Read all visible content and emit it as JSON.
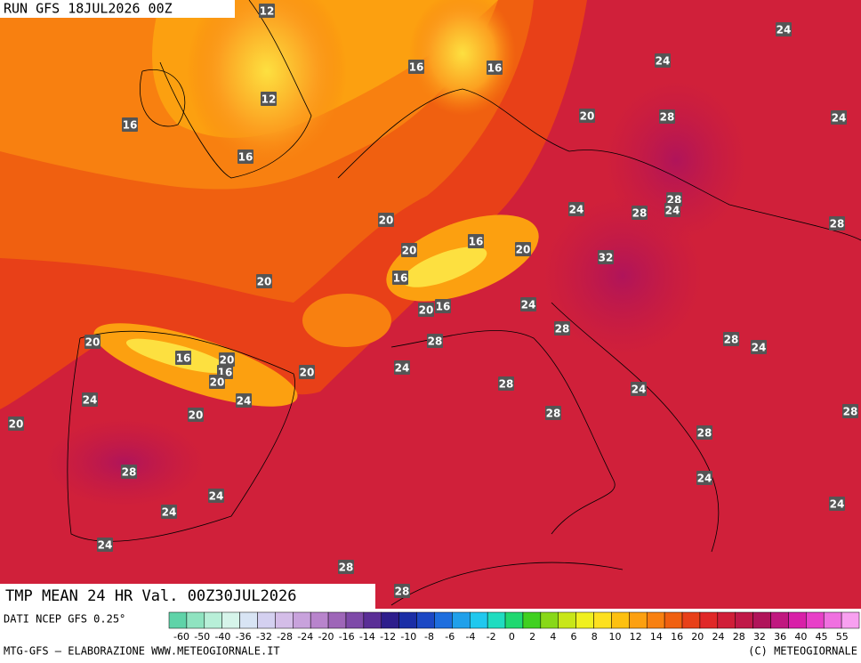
{
  "header": {
    "run": "RUN GFS 18JUL2026 00Z"
  },
  "map": {
    "title": "TMP MEAN 24 HR Val. 00Z30JUL2026",
    "contour_labels": [
      12,
      16,
      16,
      12,
      16,
      16,
      24,
      24,
      20,
      28,
      24,
      28,
      24,
      28,
      24,
      28,
      20,
      20,
      16,
      20,
      32,
      20,
      16,
      20,
      16,
      24,
      28,
      20,
      16,
      20,
      16,
      20,
      20,
      24,
      28,
      28,
      24,
      24,
      24,
      28,
      24,
      20,
      20,
      28,
      28,
      28,
      28,
      24,
      24,
      24,
      24,
      24,
      28,
      28
    ]
  },
  "footer": {
    "source": "DATI NCEP GFS 0.25°",
    "credit": "MTG-GFS — ELABORAZIONE WWW.METEOGIORNALE.IT",
    "copyright": "(C) METEOGIORNALE"
  },
  "colorbar": {
    "labels": [
      "-60",
      "-50",
      "-40",
      "-36",
      "-32",
      "-28",
      "-24",
      "-20",
      "-16",
      "-14",
      "-12",
      "-10",
      "-8",
      "-6",
      "-4",
      "-2",
      "0",
      "2",
      "4",
      "6",
      "8",
      "10",
      "12",
      "14",
      "16",
      "20",
      "24",
      "28",
      "32",
      "36",
      "40",
      "45",
      "55"
    ],
    "colors": [
      "#5fd3a8",
      "#8fe3c0",
      "#b8efd8",
      "#d6f4ea",
      "#d8e4f4",
      "#d4d0f0",
      "#d4bde8",
      "#c8a2dc",
      "#b884cc",
      "#9e66b8",
      "#7e4aa8",
      "#5a2e96",
      "#2e1e8c",
      "#1a2ea6",
      "#1c48c4",
      "#1e6ede",
      "#20a0ea",
      "#20c8ee",
      "#20dcc0",
      "#20d870",
      "#40d020",
      "#88d818",
      "#c8e618",
      "#f0f020",
      "#fde020",
      "#fdc010",
      "#fca010",
      "#f88010",
      "#f06010",
      "#e84018",
      "#e02828",
      "#d01e38",
      "#c01848",
      "#b0145a",
      "#c01880",
      "#d820a8",
      "#e840c8",
      "#f070e0",
      "#f8a0f0"
    ]
  }
}
